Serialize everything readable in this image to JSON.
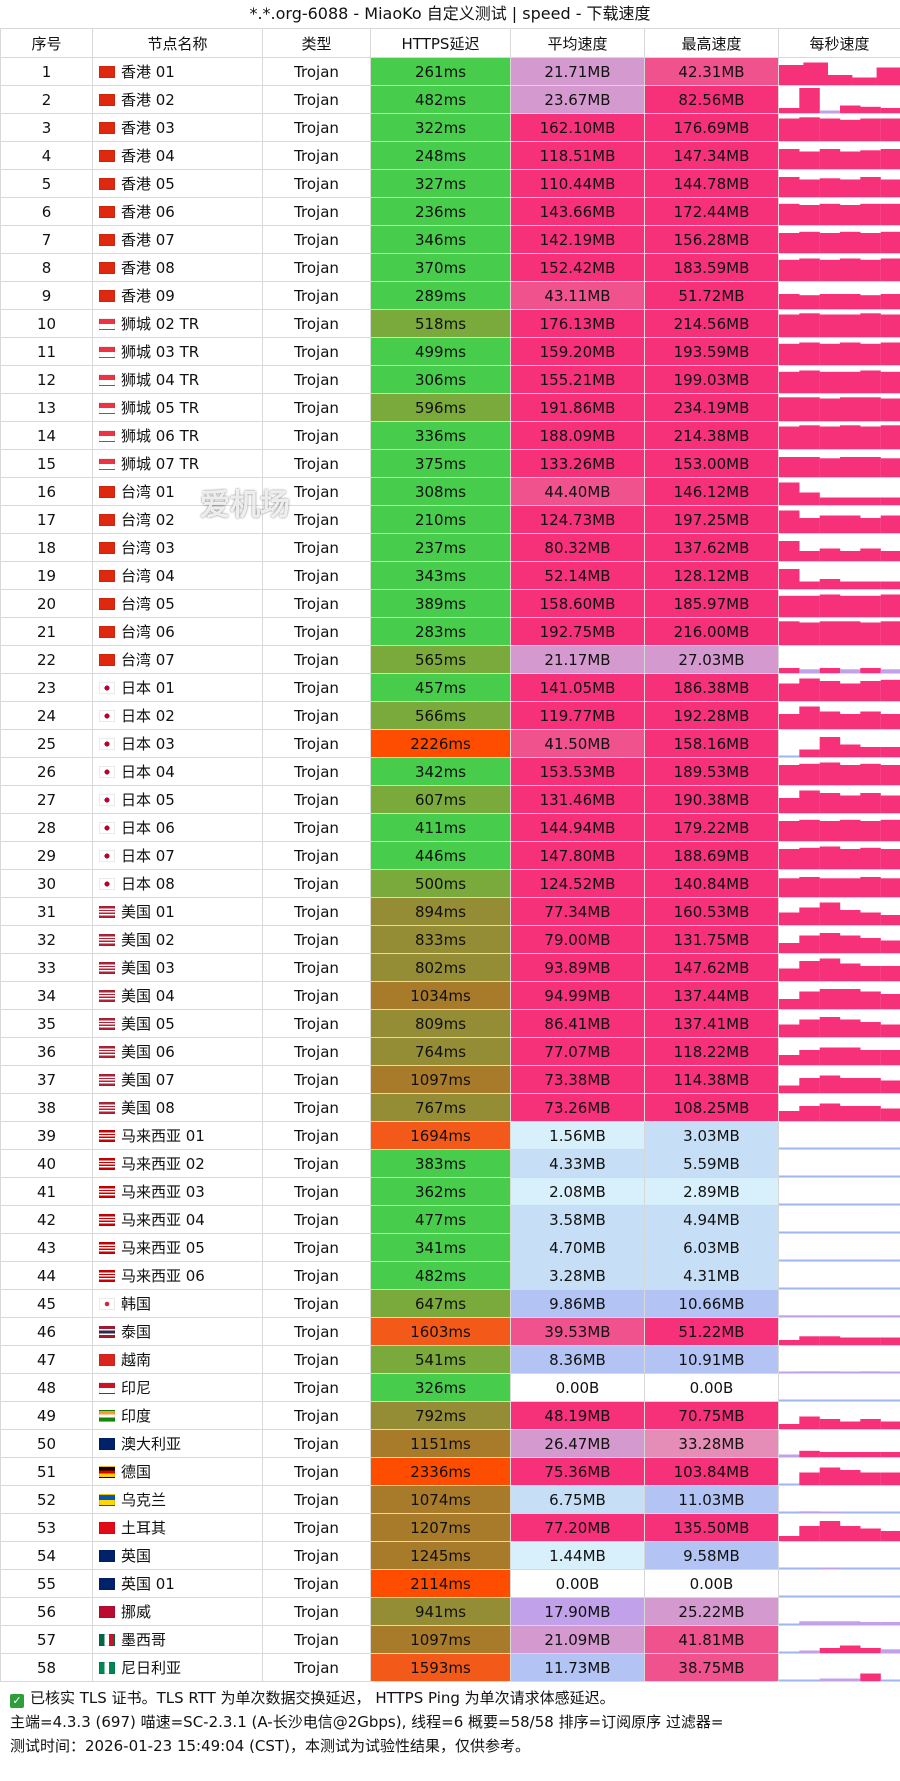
{
  "title": "*.*.org-6088 - MiaoKo 自定义测试 | speed - 下载速度",
  "headers": [
    "序号",
    "节点名称",
    "类型",
    "HTTPS延迟",
    "平均速度",
    "最高速度",
    "每秒速度"
  ],
  "watermark": "爱机场",
  "rows": [
    {
      "idx": "1",
      "flag": "hk",
      "name": "香港 01",
      "type": "Trojan",
      "latency": "261ms",
      "avg": "21.71MB",
      "max": "42.31MB",
      "spark": [
        0.8,
        0.9,
        0.4,
        0.3,
        0.7
      ]
    },
    {
      "idx": "2",
      "flag": "hk",
      "name": "香港 02",
      "type": "Trojan",
      "latency": "482ms",
      "avg": "23.67MB",
      "max": "82.56MB",
      "spark": [
        0.2,
        1.0,
        0.1,
        0.3,
        0.25,
        0.2
      ]
    },
    {
      "idx": "3",
      "flag": "hk",
      "name": "香港 03",
      "type": "Trojan",
      "latency": "322ms",
      "avg": "162.10MB",
      "max": "176.69MB",
      "spark": [
        0.9,
        0.95,
        0.9,
        0.85,
        0.9,
        0.9
      ]
    },
    {
      "idx": "4",
      "flag": "hk",
      "name": "香港 04",
      "type": "Trojan",
      "latency": "248ms",
      "avg": "118.51MB",
      "max": "147.34MB",
      "spark": [
        0.8,
        0.7,
        0.8,
        0.7,
        0.75,
        0.8
      ]
    },
    {
      "idx": "5",
      "flag": "hk",
      "name": "香港 05",
      "type": "Trojan",
      "latency": "327ms",
      "avg": "110.44MB",
      "max": "144.78MB",
      "spark": [
        0.8,
        0.7,
        0.75,
        0.7,
        0.8,
        0.7
      ]
    },
    {
      "idx": "6",
      "flag": "hk",
      "name": "香港 06",
      "type": "Trojan",
      "latency": "236ms",
      "avg": "143.66MB",
      "max": "172.44MB",
      "spark": [
        0.85,
        0.8,
        0.85,
        0.8,
        0.85,
        0.85
      ]
    },
    {
      "idx": "7",
      "flag": "hk",
      "name": "香港 07",
      "type": "Trojan",
      "latency": "346ms",
      "avg": "142.19MB",
      "max": "156.28MB",
      "spark": [
        0.8,
        0.85,
        0.8,
        0.85,
        0.8,
        0.85
      ]
    },
    {
      "idx": "8",
      "flag": "hk",
      "name": "香港 08",
      "type": "Trojan",
      "latency": "370ms",
      "avg": "152.42MB",
      "max": "183.59MB",
      "spark": [
        0.85,
        0.9,
        0.85,
        0.9,
        0.85,
        0.9
      ]
    },
    {
      "idx": "9",
      "flag": "hk",
      "name": "香港 09",
      "type": "Trojan",
      "latency": "289ms",
      "avg": "43.11MB",
      "max": "51.72MB",
      "spark": [
        0.6,
        0.55,
        0.6,
        0.6,
        0.55,
        0.6
      ]
    },
    {
      "idx": "10",
      "flag": "sg",
      "name": "狮城 02 TR",
      "type": "Trojan",
      "latency": "518ms",
      "avg": "176.13MB",
      "max": "214.56MB",
      "spark": [
        0.9,
        0.95,
        0.9,
        0.9,
        0.95,
        0.9
      ]
    },
    {
      "idx": "11",
      "flag": "sg",
      "name": "狮城 03 TR",
      "type": "Trojan",
      "latency": "499ms",
      "avg": "159.20MB",
      "max": "193.59MB",
      "spark": [
        0.85,
        0.9,
        0.85,
        0.9,
        0.85,
        0.9
      ]
    },
    {
      "idx": "12",
      "flag": "sg",
      "name": "狮城 04 TR",
      "type": "Trojan",
      "latency": "306ms",
      "avg": "155.21MB",
      "max": "199.03MB",
      "spark": [
        0.85,
        0.9,
        0.85,
        0.85,
        0.9,
        0.85
      ]
    },
    {
      "idx": "13",
      "flag": "sg",
      "name": "狮城 05 TR",
      "type": "Trojan",
      "latency": "596ms",
      "avg": "191.86MB",
      "max": "234.19MB",
      "spark": [
        0.95,
        0.95,
        0.9,
        0.95,
        0.95,
        0.9
      ]
    },
    {
      "idx": "14",
      "flag": "sg",
      "name": "狮城 06 TR",
      "type": "Trojan",
      "latency": "336ms",
      "avg": "188.09MB",
      "max": "214.38MB",
      "spark": [
        0.9,
        0.95,
        0.9,
        0.95,
        0.9,
        0.95
      ]
    },
    {
      "idx": "15",
      "flag": "sg",
      "name": "狮城 07 TR",
      "type": "Trojan",
      "latency": "375ms",
      "avg": "133.26MB",
      "max": "153.00MB",
      "spark": [
        0.8,
        0.8,
        0.75,
        0.8,
        0.8,
        0.75
      ]
    },
    {
      "idx": "16",
      "flag": "cn",
      "name": "台湾 01",
      "type": "Trojan",
      "latency": "308ms",
      "avg": "44.40MB",
      "max": "146.12MB",
      "spark": [
        0.9,
        0.5,
        0.3,
        0.3,
        0.3,
        0.3
      ]
    },
    {
      "idx": "17",
      "flag": "cn",
      "name": "台湾 02",
      "type": "Trojan",
      "latency": "210ms",
      "avg": "124.73MB",
      "max": "197.25MB",
      "spark": [
        0.9,
        0.6,
        0.7,
        0.7,
        0.6,
        0.7
      ]
    },
    {
      "idx": "18",
      "flag": "cn",
      "name": "台湾 03",
      "type": "Trojan",
      "latency": "237ms",
      "avg": "80.32MB",
      "max": "137.62MB",
      "spark": [
        0.8,
        0.4,
        0.5,
        0.4,
        0.5,
        0.4
      ]
    },
    {
      "idx": "19",
      "flag": "cn",
      "name": "台湾 04",
      "type": "Trojan",
      "latency": "343ms",
      "avg": "52.14MB",
      "max": "128.12MB",
      "spark": [
        0.8,
        0.3,
        0.4,
        0.3,
        0.3,
        0.3
      ]
    },
    {
      "idx": "20",
      "flag": "cn",
      "name": "台湾 05",
      "type": "Trojan",
      "latency": "389ms",
      "avg": "158.60MB",
      "max": "185.97MB",
      "spark": [
        0.85,
        0.85,
        0.9,
        0.85,
        0.85,
        0.9
      ]
    },
    {
      "idx": "21",
      "flag": "cn",
      "name": "台湾 06",
      "type": "Trojan",
      "latency": "283ms",
      "avg": "192.75MB",
      "max": "216.00MB",
      "spark": [
        0.95,
        0.9,
        0.95,
        0.95,
        0.9,
        0.95
      ]
    },
    {
      "idx": "22",
      "flag": "cn",
      "name": "台湾 07",
      "type": "Trojan",
      "latency": "565ms",
      "avg": "21.17MB",
      "max": "27.03MB",
      "spark": [
        0.2,
        0.15,
        0.2,
        0.15,
        0.2,
        0.15
      ]
    },
    {
      "idx": "23",
      "flag": "jp",
      "name": "日本 01",
      "type": "Trojan",
      "latency": "457ms",
      "avg": "141.05MB",
      "max": "186.38MB",
      "spark": [
        0.7,
        0.9,
        0.8,
        0.7,
        0.8,
        0.85
      ]
    },
    {
      "idx": "24",
      "flag": "jp",
      "name": "日本 02",
      "type": "Trojan",
      "latency": "566ms",
      "avg": "119.77MB",
      "max": "192.28MB",
      "spark": [
        0.6,
        0.9,
        0.7,
        0.6,
        0.7,
        0.6
      ]
    },
    {
      "idx": "25",
      "flag": "jp",
      "name": "日本 03",
      "type": "Trojan",
      "latency": "2226ms",
      "avg": "41.50MB",
      "max": "158.16MB",
      "spark": [
        0.0,
        0.3,
        0.8,
        0.5,
        0.4,
        0.4
      ]
    },
    {
      "idx": "26",
      "flag": "jp",
      "name": "日本 04",
      "type": "Trojan",
      "latency": "342ms",
      "avg": "153.53MB",
      "max": "189.53MB",
      "spark": [
        0.8,
        0.85,
        0.9,
        0.8,
        0.85,
        0.8
      ]
    },
    {
      "idx": "27",
      "flag": "jp",
      "name": "日本 05",
      "type": "Trojan",
      "latency": "607ms",
      "avg": "131.46MB",
      "max": "190.38MB",
      "spark": [
        0.6,
        0.9,
        0.8,
        0.7,
        0.8,
        0.7
      ]
    },
    {
      "idx": "28",
      "flag": "jp",
      "name": "日本 06",
      "type": "Trojan",
      "latency": "411ms",
      "avg": "144.94MB",
      "max": "179.22MB",
      "spark": [
        0.8,
        0.85,
        0.8,
        0.85,
        0.8,
        0.85
      ]
    },
    {
      "idx": "29",
      "flag": "jp",
      "name": "日本 07",
      "type": "Trojan",
      "latency": "446ms",
      "avg": "147.80MB",
      "max": "188.69MB",
      "spark": [
        0.8,
        0.85,
        0.9,
        0.8,
        0.85,
        0.8
      ]
    },
    {
      "idx": "30",
      "flag": "jp",
      "name": "日本 08",
      "type": "Trojan",
      "latency": "500ms",
      "avg": "124.52MB",
      "max": "140.84MB",
      "spark": [
        0.75,
        0.8,
        0.75,
        0.75,
        0.8,
        0.75
      ]
    },
    {
      "idx": "31",
      "flag": "us",
      "name": "美国 01",
      "type": "Trojan",
      "latency": "894ms",
      "avg": "77.34MB",
      "max": "160.53MB",
      "spark": [
        0.5,
        0.7,
        0.9,
        0.6,
        0.5,
        0.4
      ]
    },
    {
      "idx": "32",
      "flag": "us",
      "name": "美国 02",
      "type": "Trojan",
      "latency": "833ms",
      "avg": "79.00MB",
      "max": "131.75MB",
      "spark": [
        0.4,
        0.7,
        0.8,
        0.7,
        0.6,
        0.5
      ]
    },
    {
      "idx": "33",
      "flag": "us",
      "name": "美国 03",
      "type": "Trojan",
      "latency": "802ms",
      "avg": "93.89MB",
      "max": "147.62MB",
      "spark": [
        0.5,
        0.8,
        0.9,
        0.7,
        0.6,
        0.6
      ]
    },
    {
      "idx": "34",
      "flag": "us",
      "name": "美国 04",
      "type": "Trojan",
      "latency": "1034ms",
      "avg": "94.99MB",
      "max": "137.44MB",
      "spark": [
        0.4,
        0.7,
        0.8,
        0.8,
        0.7,
        0.6
      ]
    },
    {
      "idx": "35",
      "flag": "us",
      "name": "美国 05",
      "type": "Trojan",
      "latency": "809ms",
      "avg": "86.41MB",
      "max": "137.41MB",
      "spark": [
        0.5,
        0.7,
        0.8,
        0.7,
        0.6,
        0.5
      ]
    },
    {
      "idx": "36",
      "flag": "us",
      "name": "美国 06",
      "type": "Trojan",
      "latency": "764ms",
      "avg": "77.07MB",
      "max": "118.22MB",
      "spark": [
        0.4,
        0.6,
        0.7,
        0.7,
        0.6,
        0.6
      ]
    },
    {
      "idx": "37",
      "flag": "us",
      "name": "美国 07",
      "type": "Trojan",
      "latency": "1097ms",
      "avg": "73.38MB",
      "max": "114.38MB",
      "spark": [
        0.3,
        0.6,
        0.7,
        0.6,
        0.6,
        0.5
      ]
    },
    {
      "idx": "38",
      "flag": "us",
      "name": "美国 08",
      "type": "Trojan",
      "latency": "767ms",
      "avg": "73.26MB",
      "max": "108.25MB",
      "spark": [
        0.4,
        0.6,
        0.7,
        0.6,
        0.6,
        0.5
      ]
    },
    {
      "idx": "39",
      "flag": "my",
      "name": "马来西亚 01",
      "type": "Trojan",
      "latency": "1694ms",
      "avg": "1.56MB",
      "max": "3.03MB",
      "spark": [
        0.0,
        0.02,
        0.02,
        0.03,
        0.02,
        0.02
      ]
    },
    {
      "idx": "40",
      "flag": "my",
      "name": "马来西亚 02",
      "type": "Trojan",
      "latency": "383ms",
      "avg": "4.33MB",
      "max": "5.59MB",
      "spark": [
        0.04,
        0.04,
        0.04,
        0.04,
        0.04,
        0.04
      ]
    },
    {
      "idx": "41",
      "flag": "my",
      "name": "马来西亚 03",
      "type": "Trojan",
      "latency": "362ms",
      "avg": "2.08MB",
      "max": "2.89MB",
      "spark": [
        0.02,
        0.02,
        0.02,
        0.02,
        0.02,
        0.02
      ]
    },
    {
      "idx": "42",
      "flag": "my",
      "name": "马来西亚 04",
      "type": "Trojan",
      "latency": "477ms",
      "avg": "3.58MB",
      "max": "4.94MB",
      "spark": [
        0.03,
        0.03,
        0.03,
        0.03,
        0.03,
        0.03
      ]
    },
    {
      "idx": "43",
      "flag": "my",
      "name": "马来西亚 05",
      "type": "Trojan",
      "latency": "341ms",
      "avg": "4.70MB",
      "max": "6.03MB",
      "spark": [
        0.04,
        0.04,
        0.04,
        0.04,
        0.04,
        0.04
      ]
    },
    {
      "idx": "44",
      "flag": "my",
      "name": "马来西亚 06",
      "type": "Trojan",
      "latency": "482ms",
      "avg": "3.28MB",
      "max": "4.31MB",
      "spark": [
        0.03,
        0.03,
        0.03,
        0.03,
        0.03,
        0.03
      ]
    },
    {
      "idx": "45",
      "flag": "kr",
      "name": "韩国",
      "type": "Trojan",
      "latency": "647ms",
      "avg": "9.86MB",
      "max": "10.66MB",
      "spark": [
        0.07,
        0.07,
        0.07,
        0.07,
        0.07,
        0.07
      ]
    },
    {
      "idx": "46",
      "flag": "th",
      "name": "泰国",
      "type": "Trojan",
      "latency": "1603ms",
      "avg": "39.53MB",
      "max": "51.22MB",
      "spark": [
        0.2,
        0.35,
        0.35,
        0.3,
        0.3,
        0.3
      ]
    },
    {
      "idx": "47",
      "flag": "vn",
      "name": "越南",
      "type": "Trojan",
      "latency": "541ms",
      "avg": "8.36MB",
      "max": "10.91MB",
      "spark": [
        0.06,
        0.07,
        0.07,
        0.06,
        0.07,
        0.06
      ]
    },
    {
      "idx": "48",
      "flag": "id",
      "name": "印尼",
      "type": "Trojan",
      "latency": "326ms",
      "avg": "0.00B",
      "max": "0.00B",
      "spark": [
        0,
        0,
        0,
        0,
        0,
        0
      ]
    },
    {
      "idx": "49",
      "flag": "in",
      "name": "印度",
      "type": "Trojan",
      "latency": "792ms",
      "avg": "48.19MB",
      "max": "70.75MB",
      "spark": [
        0.2,
        0.5,
        0.4,
        0.3,
        0.4,
        0.3
      ]
    },
    {
      "idx": "50",
      "flag": "au",
      "name": "澳大利亚",
      "type": "Trojan",
      "latency": "1151ms",
      "avg": "26.47MB",
      "max": "33.28MB",
      "spark": [
        0.1,
        0.25,
        0.2,
        0.2,
        0.2,
        0.2
      ]
    },
    {
      "idx": "51",
      "flag": "de",
      "name": "德国",
      "type": "Trojan",
      "latency": "2336ms",
      "avg": "75.36MB",
      "max": "103.84MB",
      "spark": [
        0.0,
        0.5,
        0.7,
        0.6,
        0.5,
        0.5
      ]
    },
    {
      "idx": "52",
      "flag": "ua",
      "name": "乌克兰",
      "type": "Trojan",
      "latency": "1074ms",
      "avg": "6.75MB",
      "max": "11.03MB",
      "spark": [
        0.03,
        0.07,
        0.06,
        0.05,
        0.05,
        0.05
      ]
    },
    {
      "idx": "53",
      "flag": "tr",
      "name": "土耳其",
      "type": "Trojan",
      "latency": "1207ms",
      "avg": "77.20MB",
      "max": "135.50MB",
      "spark": [
        0.2,
        0.6,
        0.8,
        0.6,
        0.5,
        0.4
      ]
    },
    {
      "idx": "54",
      "flag": "gb",
      "name": "英国",
      "type": "Trojan",
      "latency": "1245ms",
      "avg": "1.44MB",
      "max": "9.58MB",
      "spark": [
        0.0,
        0.0,
        0.06,
        0.01,
        0.01,
        0.01
      ]
    },
    {
      "idx": "55",
      "flag": "gb",
      "name": "英国 01",
      "type": "Trojan",
      "latency": "2114ms",
      "avg": "0.00B",
      "max": "0.00B",
      "spark": [
        0,
        0,
        0,
        0,
        0,
        0
      ]
    },
    {
      "idx": "56",
      "flag": "no",
      "name": "挪威",
      "type": "Trojan",
      "latency": "941ms",
      "avg": "17.90MB",
      "max": "25.22MB",
      "spark": [
        0.05,
        0.15,
        0.15,
        0.15,
        0.12,
        0.12
      ]
    },
    {
      "idx": "57",
      "flag": "mx",
      "name": "墨西哥",
      "type": "Trojan",
      "latency": "1097ms",
      "avg": "21.09MB",
      "max": "41.81MB",
      "spark": [
        0.05,
        0.1,
        0.2,
        0.3,
        0.2,
        0.15
      ]
    },
    {
      "idx": "58",
      "flag": "ng",
      "name": "尼日利亚",
      "type": "Trojan",
      "latency": "1593ms",
      "avg": "11.73MB",
      "max": "38.75MB",
      "spark": [
        0.02,
        0.05,
        0.1,
        0.1,
        0.3,
        0.05
      ]
    }
  ],
  "footer": {
    "line1": "已核实 TLS 证书。TLS RTT 为单次数据交换延迟， HTTPS Ping 为单次请求体感延迟。",
    "line2": "主端=4.3.3 (697) 喵速=SC-2.3.1 (A-长沙电信@2Gbps), 线程=6 概要=58/58 排序=订阅原序 过滤器=",
    "line3": "测试时间：2026-01-23 15:49:04 (CST)，本测试为试验性结果，仅供参考。"
  }
}
